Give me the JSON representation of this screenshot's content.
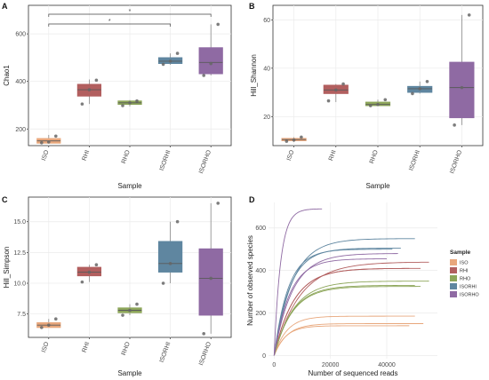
{
  "colors": {
    "ISO": "#e8a77c",
    "RHI": "#b25f5f",
    "RHO": "#8da65a",
    "ISORHI": "#5f86a0",
    "ISORHO": "#8f6aa3",
    "grid": "#ebebeb",
    "axis": "#333333"
  },
  "chart_data": [
    {
      "panel": "A",
      "type": "box",
      "xlabel": "Sample",
      "ylabel": "Chao1",
      "ylim": [
        130,
        720
      ],
      "yticks": [
        200,
        400,
        600
      ],
      "categories": [
        "ISO",
        "RHI",
        "RHO",
        "ISORHI",
        "ISORHO"
      ],
      "boxes": [
        {
          "min": 140,
          "q1": 140,
          "median": 150,
          "q3": 160,
          "max": 175,
          "points": [
            170,
            145,
            142
          ]
        },
        {
          "min": 305,
          "q1": 338,
          "median": 365,
          "q3": 388,
          "max": 408,
          "points": [
            405,
            365,
            305
          ]
        },
        {
          "min": 295,
          "q1": 303,
          "median": 310,
          "q3": 318,
          "max": 322,
          "points": [
            318,
            310,
            298
          ]
        },
        {
          "min": 470,
          "q1": 475,
          "median": 485,
          "q3": 500,
          "max": 518,
          "points": [
            518,
            485,
            472
          ]
        },
        {
          "min": 425,
          "q1": 432,
          "median": 480,
          "q3": 542,
          "max": 640,
          "points": [
            640,
            475,
            425
          ]
        }
      ],
      "significance": [
        {
          "from": "ISO",
          "to": "ISORHO",
          "label": "*"
        },
        {
          "from": "ISO",
          "to": "ISORHI",
          "label": "*"
        }
      ]
    },
    {
      "panel": "B",
      "type": "box",
      "xlabel": "Sample",
      "ylabel": "Hill_Shannon",
      "ylim": [
        8,
        66
      ],
      "yticks": [
        20,
        40,
        60
      ],
      "categories": [
        "ISO",
        "RHI",
        "RHO",
        "ISORHI",
        "ISORHO"
      ],
      "boxes": [
        {
          "min": 9.5,
          "q1": 10,
          "median": 10.5,
          "q3": 11,
          "max": 11.5,
          "points": [
            11.5,
            10.3,
            9.8
          ]
        },
        {
          "min": 26,
          "q1": 29.5,
          "median": 31,
          "q3": 33,
          "max": 33.5,
          "points": [
            33.5,
            31,
            26.5
          ]
        },
        {
          "min": 24.5,
          "q1": 24.5,
          "median": 25,
          "q3": 26,
          "max": 27,
          "points": [
            27,
            25,
            24.5
          ]
        },
        {
          "min": 29.5,
          "q1": 30,
          "median": 31.5,
          "q3": 32.5,
          "max": 34.5,
          "points": [
            34.5,
            31.5,
            29.5
          ]
        },
        {
          "min": 16.5,
          "q1": 19.5,
          "median": 32,
          "q3": 42.5,
          "max": 62,
          "points": [
            62,
            32,
            16.5
          ]
        }
      ]
    },
    {
      "panel": "C",
      "type": "box",
      "xlabel": "Sample",
      "ylabel": "Hill_Simpson",
      "ylim": [
        5.6,
        17
      ],
      "yticks": [
        7.5,
        10.0,
        12.5,
        15.0
      ],
      "ytick_labels": [
        "7.5",
        "10.0",
        "12.5",
        "15.0"
      ],
      "categories": [
        "ISO",
        "RHI",
        "RHO",
        "ISORHI",
        "ISORHO"
      ],
      "boxes": [
        {
          "min": 6.4,
          "q1": 6.4,
          "median": 6.6,
          "q3": 6.8,
          "max": 7.1,
          "points": [
            7.1,
            6.6,
            6.4
          ]
        },
        {
          "min": 10.1,
          "q1": 10.6,
          "median": 10.9,
          "q3": 11.3,
          "max": 11.5,
          "points": [
            11.5,
            10.9,
            10.1
          ]
        },
        {
          "min": 7.4,
          "q1": 7.6,
          "median": 7.8,
          "q3": 8.0,
          "max": 8.3,
          "points": [
            8.3,
            7.8,
            7.4
          ]
        },
        {
          "min": 10.0,
          "q1": 10.9,
          "median": 11.6,
          "q3": 13.4,
          "max": 15.0,
          "points": [
            15.0,
            11.6,
            10.0
          ]
        },
        {
          "min": 5.9,
          "q1": 7.4,
          "median": 10.4,
          "q3": 12.8,
          "max": 16.5,
          "points": [
            16.5,
            10.4,
            5.9
          ]
        }
      ]
    },
    {
      "panel": "D",
      "type": "line",
      "xlabel": "Number of sequenced reads",
      "ylabel": "Number of observed species",
      "xlim": [
        -2000,
        58000
      ],
      "ylim": [
        -15,
        720
      ],
      "xticks": [
        0,
        20000,
        40000
      ],
      "xtick_labels": [
        "0",
        "20000",
        "40000"
      ],
      "yticks": [
        0,
        200,
        400,
        600
      ],
      "legend_title": "Sample",
      "legend_position": "right",
      "series": [
        {
          "name": "ISO",
          "curves": [
            {
              "end": 50000,
              "plateau": 185,
              "k": 4500
            },
            {
              "end": 53000,
              "plateau": 150,
              "k": 4500
            },
            {
              "end": 48000,
              "plateau": 140,
              "k": 4000
            }
          ]
        },
        {
          "name": "RHI",
          "curves": [
            {
              "end": 52000,
              "plateau": 410,
              "k": 7000
            },
            {
              "end": 48000,
              "plateau": 410,
              "k": 7000
            },
            {
              "end": 55000,
              "plateau": 440,
              "k": 9000
            }
          ]
        },
        {
          "name": "RHO",
          "curves": [
            {
              "end": 50000,
              "plateau": 330,
              "k": 6500
            },
            {
              "end": 55000,
              "plateau": 350,
              "k": 7000
            },
            {
              "end": 52000,
              "plateau": 325,
              "k": 6500
            }
          ]
        },
        {
          "name": "ISORHI",
          "curves": [
            {
              "end": 50000,
              "plateau": 550,
              "k": 6500
            },
            {
              "end": 45000,
              "plateau": 505,
              "k": 5500
            },
            {
              "end": 42000,
              "plateau": 500,
              "k": 5000
            }
          ]
        },
        {
          "name": "ISORHO",
          "curves": [
            {
              "end": 17000,
              "plateau": 690,
              "k": 2300
            },
            {
              "end": 40000,
              "plateau": 455,
              "k": 5500
            },
            {
              "end": 44000,
              "plateau": 480,
              "k": 6500
            }
          ]
        }
      ]
    }
  ]
}
